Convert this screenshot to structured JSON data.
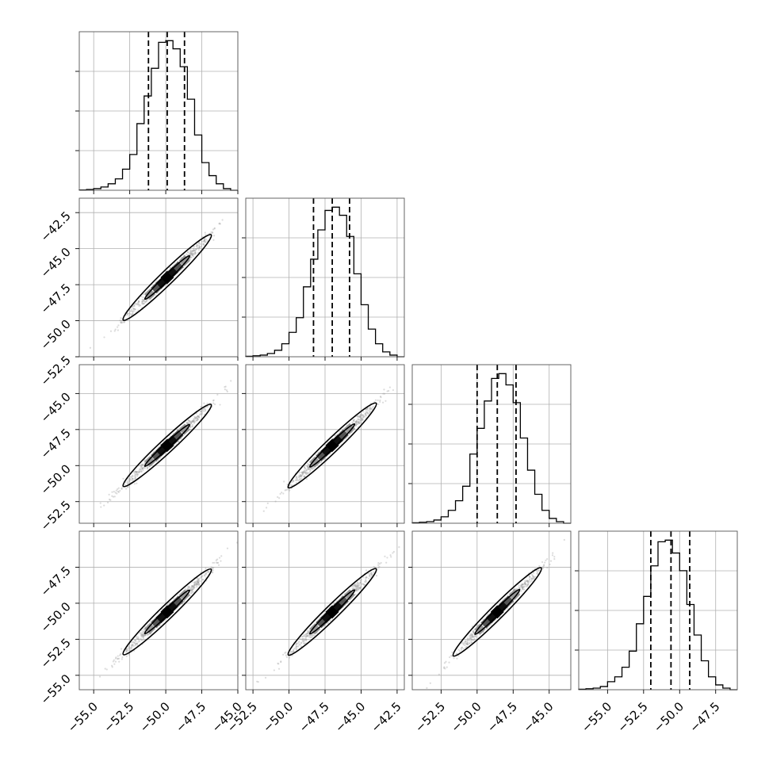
{
  "chart_data": {
    "type": "corner",
    "title": "",
    "parameters": 4,
    "grid": true,
    "marginals": [
      {
        "index": 0,
        "edges": [
          -56.0,
          -55.5,
          -55.0,
          -54.5,
          -54.0,
          -53.5,
          -53.0,
          -52.5,
          -52.0,
          -51.5,
          -51.0,
          -50.5,
          -50.0,
          -49.5,
          -49.0,
          -48.5,
          -48.0,
          -47.5,
          -47.0,
          -46.5,
          -46.0,
          -45.5,
          -45.0
        ],
        "counts": [
          0.2,
          0.5,
          1,
          2,
          4,
          7,
          13,
          22,
          41,
          58,
          75,
          91,
          92,
          87,
          76,
          56,
          34,
          17,
          9,
          4,
          1,
          0
        ],
        "quantiles": [
          -51.2,
          -49.9,
          -48.7
        ]
      },
      {
        "index": 1,
        "edges": [
          -53.0,
          -52.5,
          -52.0,
          -51.5,
          -51.0,
          -50.5,
          -50.0,
          -49.5,
          -49.0,
          -48.5,
          -48.0,
          -47.5,
          -47.0,
          -46.5,
          -46.0,
          -45.5,
          -45.0,
          -44.5,
          -44.0,
          -43.5,
          -43.0,
          -42.5,
          -42.0
        ],
        "counts": [
          0.3,
          0.6,
          1,
          2,
          4,
          8,
          15,
          24,
          43,
          60,
          78,
          90,
          92,
          87,
          74,
          51,
          32,
          17,
          8,
          3,
          1,
          0
        ],
        "quantiles": [
          -48.3,
          -47.0,
          -45.8
        ]
      },
      {
        "index": 2,
        "edges": [
          -54.5,
          -54.0,
          -53.5,
          -53.0,
          -52.5,
          -52.0,
          -51.5,
          -51.0,
          -50.5,
          -50.0,
          -49.5,
          -49.0,
          -48.5,
          -48.0,
          -47.5,
          -47.0,
          -46.5,
          -46.0,
          -45.5,
          -45.0,
          -44.5,
          -44.0,
          -43.5
        ],
        "counts": [
          0.3,
          0.6,
          1,
          2,
          4,
          8,
          14,
          23,
          43,
          59,
          76,
          90,
          93,
          86,
          75,
          53,
          33,
          18,
          8,
          3,
          1,
          0
        ],
        "quantiles": [
          -50.0,
          -48.6,
          -47.3
        ]
      },
      {
        "index": 3,
        "edges": [
          -57.0,
          -56.5,
          -56.0,
          -55.5,
          -55.0,
          -54.5,
          -54.0,
          -53.5,
          -53.0,
          -52.5,
          -52.0,
          -51.5,
          -51.0,
          -50.5,
          -50.0,
          -49.5,
          -49.0,
          -48.5,
          -48.0,
          -47.5,
          -47.0,
          -46.5,
          -46.0
        ],
        "counts": [
          0.3,
          0.6,
          1,
          2,
          5,
          8,
          14,
          24,
          41,
          58,
          77,
          92,
          93,
          85,
          74,
          53,
          34,
          18,
          8,
          3,
          1,
          0
        ],
        "quantiles": [
          -52.0,
          -50.6,
          -49.3
        ]
      }
    ],
    "pair_panels": [
      {
        "row": 1,
        "col": 0,
        "slope": 0.97,
        "x_center": -49.9,
        "y_center": -47.0,
        "x_span": [
          -55.5,
          -45.5
        ]
      },
      {
        "row": 2,
        "col": 0,
        "slope": 0.93,
        "x_center": -49.9,
        "y_center": -48.6,
        "x_span": [
          -55.5,
          -45.5
        ]
      },
      {
        "row": 2,
        "col": 1,
        "slope": 0.96,
        "x_center": -47.0,
        "y_center": -48.6,
        "x_span": [
          -52.5,
          -42.5
        ]
      },
      {
        "row": 3,
        "col": 0,
        "slope": 0.97,
        "x_center": -49.9,
        "y_center": -50.6,
        "x_span": [
          -55.5,
          -45.5
        ]
      },
      {
        "row": 3,
        "col": 1,
        "slope": 0.98,
        "x_center": -47.0,
        "y_center": -50.6,
        "x_span": [
          -52.5,
          -42.5
        ]
      },
      {
        "row": 3,
        "col": 2,
        "slope": 1.0,
        "x_center": -48.6,
        "y_center": -50.6,
        "x_span": [
          -54.0,
          -43.5
        ]
      }
    ],
    "axes": {
      "x": [
        {
          "col": 0,
          "range": [
            -56.0,
            -45.0
          ],
          "ticks": [
            -55.0,
            -52.5,
            -50.0,
            -47.5,
            -45.0
          ],
          "tick_labels": [
            "−55.0",
            "−52.5",
            "−50.0",
            "−47.5",
            "−45.0"
          ]
        },
        {
          "col": 1,
          "range": [
            -53.0,
            -42.0
          ],
          "ticks": [
            -52.5,
            -50.0,
            -47.5,
            -45.0,
            -42.5
          ],
          "tick_labels": [
            "−52.5",
            "−50.0",
            "−47.5",
            "−45.0",
            "−42.5"
          ]
        },
        {
          "col": 2,
          "range": [
            -54.5,
            -43.5
          ],
          "ticks": [
            -52.5,
            -50.0,
            -47.5,
            -45.0
          ],
          "tick_labels": [
            "−52.5",
            "−50.0",
            "−47.5",
            "−45.0"
          ]
        },
        {
          "col": 3,
          "range": [
            -57.0,
            -46.0
          ],
          "ticks": [
            -55.0,
            -52.5,
            -50.0,
            -47.5
          ],
          "tick_labels": [
            "−55.0",
            "−52.5",
            "−50.0",
            "−47.5"
          ]
        }
      ],
      "y": [
        {
          "row": 1,
          "range": [
            -52.5,
            -41.5
          ],
          "ticks": [
            -52.5,
            -50.0,
            -47.5,
            -45.0,
            -42.5
          ],
          "tick_labels": [
            "−52.5",
            "−50.0",
            "−47.5",
            "−45.0",
            "−42.5"
          ]
        },
        {
          "row": 2,
          "range": [
            -54.0,
            -43.0
          ],
          "ticks": [
            -52.5,
            -50.0,
            -47.5,
            -45.0
          ],
          "tick_labels": [
            "−52.5",
            "−50.0",
            "−47.5",
            "−45.0"
          ]
        },
        {
          "row": 3,
          "range": [
            -56.0,
            -45.0
          ],
          "ticks": [
            -55.0,
            -52.5,
            -50.0,
            -47.5
          ],
          "tick_labels": [
            "−55.0",
            "−52.5",
            "−50.0",
            "−47.5"
          ]
        }
      ]
    },
    "colors": {
      "line": "#000000",
      "grid": "#b0b0b0",
      "frame": "#555555",
      "density_dark": "#000000",
      "density_mid": "#555555",
      "density_light": "#999999",
      "points": "#9a9a9a"
    }
  }
}
